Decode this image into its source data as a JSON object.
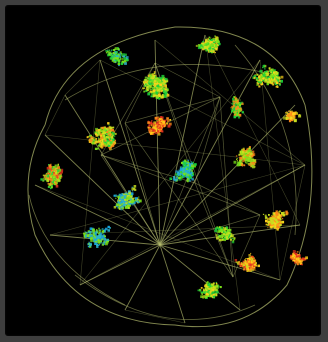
{
  "image": {
    "subject": "internet-map-globe",
    "background_color": "#000000",
    "frame_color": "#3e3e3e",
    "palette": {
      "wire": "#b8c070",
      "cluster_colors": [
        "#1dd13a",
        "#7be21a",
        "#c9e01f",
        "#ffd21a",
        "#ff8a1a",
        "#e8321f",
        "#2bb6c9",
        "#19a7e0"
      ]
    }
  }
}
